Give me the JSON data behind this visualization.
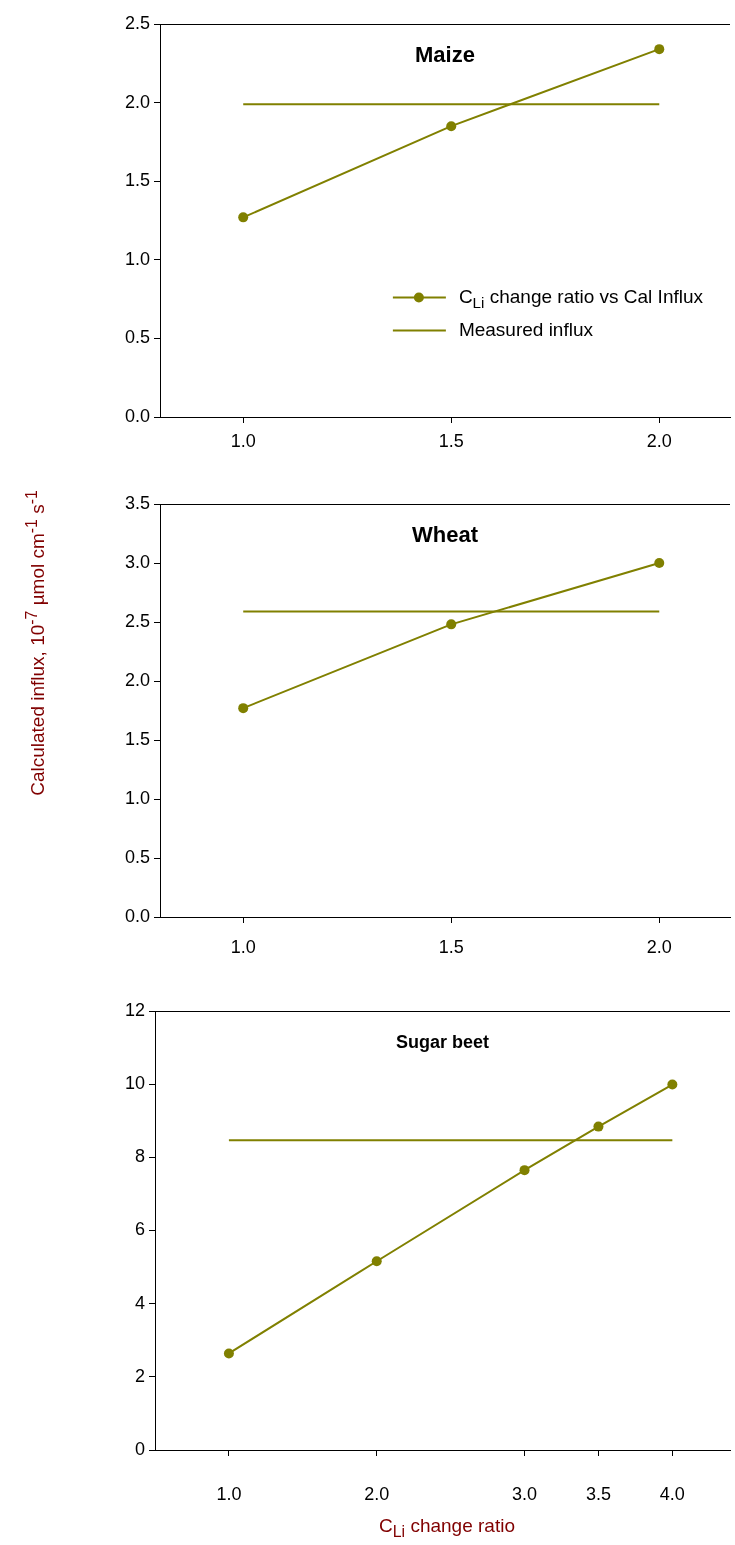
{
  "chart_data": [
    {
      "type": "line",
      "title": "Maize",
      "xlim": [
        0.8,
        2.17
      ],
      "xticks": [
        {
          "value": 1,
          "label": "1.0"
        },
        {
          "value": 1.5,
          "label": "1.5"
        },
        {
          "value": 2,
          "label": "2.0"
        }
      ],
      "ylim": [
        0,
        2.5
      ],
      "yticks": [
        {
          "value": 0,
          "label": "0.0"
        },
        {
          "value": 0.5,
          "label": "0.5"
        },
        {
          "value": 1,
          "label": "1.0"
        },
        {
          "value": 1.5,
          "label": "1.5"
        },
        {
          "value": 2,
          "label": "2.0"
        },
        {
          "value": 2.5,
          "label": "2.5"
        }
      ],
      "legend": "bottom right",
      "series": [
        {
          "name": "C$_{Li}$ change ratio vs Cal Influx",
          "color": "#808000",
          "marker": "circle",
          "x": [
            1,
            1.5,
            2
          ],
          "values": [
            1.27,
            1.85,
            2.34
          ]
        },
        {
          "name": "Measured influx",
          "color": "#808000",
          "marker": "none",
          "x": [
            1,
            2
          ],
          "values": [
            1.99,
            1.99
          ]
        }
      ]
    },
    {
      "type": "line",
      "title": "Wheat",
      "ylabel": "Calculated influx, 10$^{-7}$ µmol cm$^{-1}$ s$^{-1}$",
      "xlim": [
        0.8,
        2.17
      ],
      "xticks": [
        {
          "value": 1,
          "label": "1.0"
        },
        {
          "value": 1.5,
          "label": "1.5"
        },
        {
          "value": 2,
          "label": "2.0"
        }
      ],
      "ylim": [
        0,
        3.5
      ],
      "yticks": [
        {
          "value": 0,
          "label": "0.0"
        },
        {
          "value": 0.5,
          "label": "0.5"
        },
        {
          "value": 1,
          "label": "1.0"
        },
        {
          "value": 1.5,
          "label": "1.5"
        },
        {
          "value": 2,
          "label": "2.0"
        },
        {
          "value": 2.5,
          "label": "2.5"
        },
        {
          "value": 3,
          "label": "3.0"
        },
        {
          "value": 3.5,
          "label": "3.5"
        }
      ],
      "series": [
        {
          "color": "#808000",
          "marker": "circle",
          "x": [
            1,
            1.5,
            2
          ],
          "values": [
            1.77,
            2.48,
            3.0
          ]
        },
        {
          "color": "#808000",
          "marker": "none",
          "x": [
            1,
            2
          ],
          "values": [
            2.59,
            2.59
          ]
        }
      ]
    },
    {
      "type": "line",
      "title": "Sugar beet",
      "xlabel": "C$_{Li}$ change ratio",
      "xlim": [
        0.5,
        4.39
      ],
      "xticks": [
        {
          "value": 1,
          "label": "1.0"
        },
        {
          "value": 2,
          "label": "2.0"
        },
        {
          "value": 3,
          "label": "3.0"
        },
        {
          "value": 3.5,
          "label": "3.5"
        },
        {
          "value": 4,
          "label": "4.0"
        }
      ],
      "ylim": [
        0,
        12
      ],
      "yticks": [
        0,
        2,
        4,
        6,
        8,
        10,
        12
      ],
      "series": [
        {
          "color": "#808000",
          "marker": "circle",
          "x": [
            1,
            2,
            3,
            3.5,
            4
          ],
          "values": [
            2.64,
            5.16,
            7.65,
            8.84,
            9.99
          ]
        },
        {
          "color": "#808000",
          "marker": "none",
          "x": [
            1,
            4
          ],
          "values": [
            8.47,
            8.47
          ]
        }
      ]
    }
  ]
}
